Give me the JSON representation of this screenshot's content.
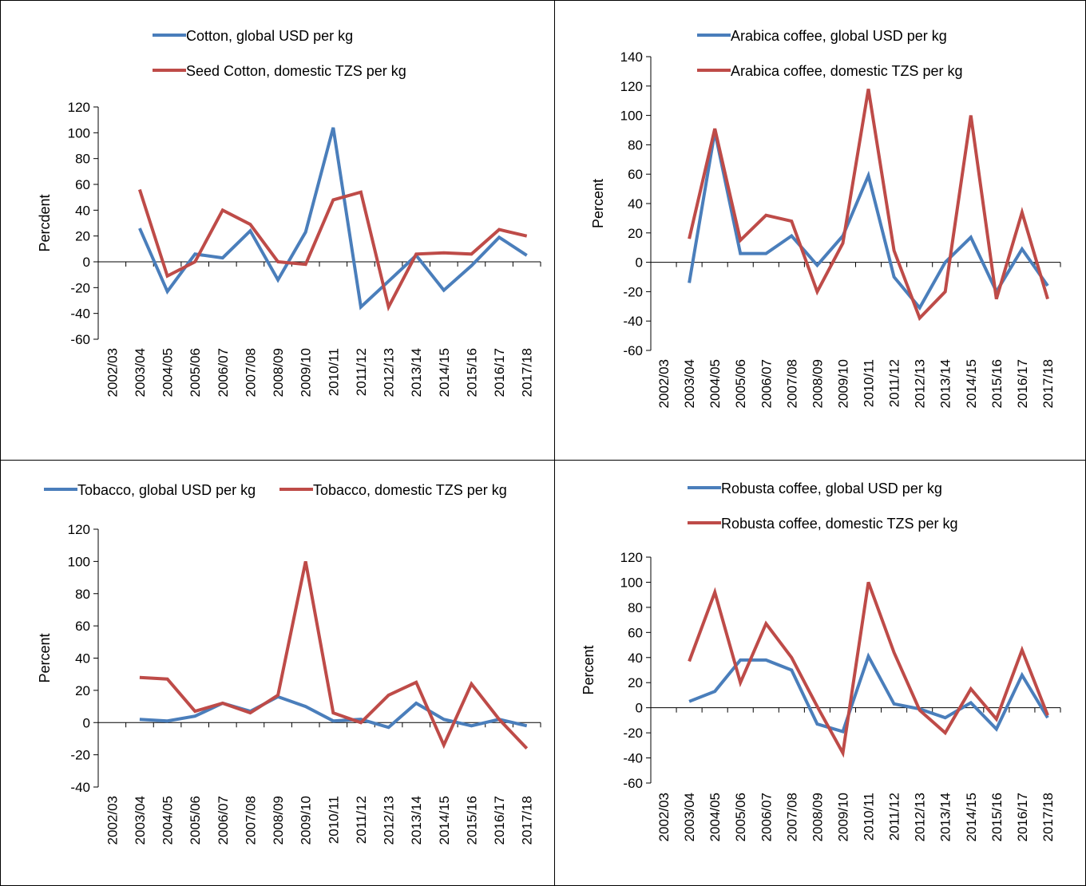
{
  "chart_data": [
    {
      "type": "line",
      "ylabel": "Percdent",
      "ylim": [
        -60,
        120
      ],
      "yticks": [
        120,
        100,
        80,
        60,
        40,
        20,
        0,
        -20,
        -40,
        -60
      ],
      "categories": [
        "2002/03",
        "2003/04",
        "2004/05",
        "2005/06",
        "2006/07",
        "2007/08",
        "2008/09",
        "2009/10",
        "2010/11",
        "2011/12",
        "2012/13",
        "2013/14",
        "2014/15",
        "2015/16",
        "2016/17",
        "2017/18"
      ],
      "legend_position": "top",
      "series": [
        {
          "name": "Cotton, global USD per kg",
          "color": "#4a7ebb",
          "values": [
            null,
            26,
            -23,
            6,
            3,
            24,
            -14,
            23,
            104,
            -35,
            -15,
            5,
            -22,
            -3,
            19,
            5
          ]
        },
        {
          "name": "Seed Cotton, domestic TZS per kg",
          "color": "#be4b48",
          "values": [
            null,
            56,
            -11,
            0,
            40,
            29,
            0,
            -2,
            48,
            54,
            -35,
            6,
            7,
            6,
            25,
            20
          ]
        }
      ]
    },
    {
      "type": "line",
      "ylabel": "Percent",
      "ylim": [
        -60,
        140
      ],
      "yticks": [
        140,
        120,
        100,
        80,
        60,
        40,
        20,
        0,
        -20,
        -40,
        -60
      ],
      "categories": [
        "2002/03",
        "2003/04",
        "2004/05",
        "2005/06",
        "2006/07",
        "2007/08",
        "2008/09",
        "2009/10",
        "2010/11",
        "2011/12",
        "2012/13",
        "2013/14",
        "2014/15",
        "2015/16",
        "2016/17",
        "2017/18"
      ],
      "legend_position": "top",
      "series": [
        {
          "name": "Arabica coffee, global USD per kg",
          "color": "#4a7ebb",
          "values": [
            null,
            -14,
            89,
            6,
            6,
            18,
            -2,
            18,
            59,
            -10,
            -31,
            0,
            17,
            -20,
            9,
            -16
          ]
        },
        {
          "name": "Arabica coffee, domestic TZS per kg",
          "color": "#be4b48",
          "values": [
            null,
            16,
            91,
            15,
            32,
            28,
            -20,
            13,
            118,
            8,
            -38,
            -20,
            100,
            -25,
            34,
            -25
          ]
        }
      ]
    },
    {
      "type": "line",
      "ylabel": "Percent",
      "ylim": [
        -40,
        120
      ],
      "yticks": [
        120,
        100,
        80,
        60,
        40,
        20,
        0,
        -20,
        -40
      ],
      "categories": [
        "2002/03",
        "2003/04",
        "2004/05",
        "2005/06",
        "2006/07",
        "2007/08",
        "2008/09",
        "2009/10",
        "2010/11",
        "2011/12",
        "2012/13",
        "2013/14",
        "2014/15",
        "2015/16",
        "2016/17",
        "2017/18"
      ],
      "legend_position": "top",
      "series": [
        {
          "name": "Tobacco, global USD per kg",
          "color": "#4a7ebb",
          "values": [
            null,
            2,
            1,
            4,
            12,
            7,
            16,
            10,
            1,
            2,
            -3,
            12,
            2,
            -2,
            2,
            -2
          ]
        },
        {
          "name": "Tobacco, domestic TZS per kg",
          "color": "#be4b48",
          "values": [
            null,
            28,
            27,
            7,
            12,
            6,
            17,
            100,
            6,
            0,
            17,
            25,
            -14,
            24,
            2,
            -16
          ]
        }
      ]
    },
    {
      "type": "line",
      "ylabel": "Percent",
      "ylim": [
        -60,
        120
      ],
      "yticks": [
        120,
        100,
        80,
        60,
        40,
        20,
        0,
        -20,
        -40,
        -60
      ],
      "categories": [
        "2002/03",
        "2003/04",
        "2004/05",
        "2005/06",
        "2006/07",
        "2007/08",
        "2008/09",
        "2009/10",
        "2010/11",
        "2011/12",
        "2012/13",
        "2013/14",
        "2014/15",
        "2015/16",
        "2016/17",
        "2017/18"
      ],
      "legend_position": "top",
      "series": [
        {
          "name": "Robusta coffee, global USD per kg",
          "color": "#4a7ebb",
          "values": [
            null,
            5,
            13,
            38,
            38,
            30,
            -13,
            -19,
            41,
            3,
            -1,
            -8,
            4,
            -17,
            26,
            -8
          ]
        },
        {
          "name": "Robusta coffee, domestic TZS per kg",
          "color": "#be4b48",
          "values": [
            null,
            37,
            92,
            20,
            67,
            40,
            1,
            -36,
            100,
            44,
            -2,
            -20,
            15,
            -9,
            46,
            -6
          ]
        }
      ]
    }
  ]
}
